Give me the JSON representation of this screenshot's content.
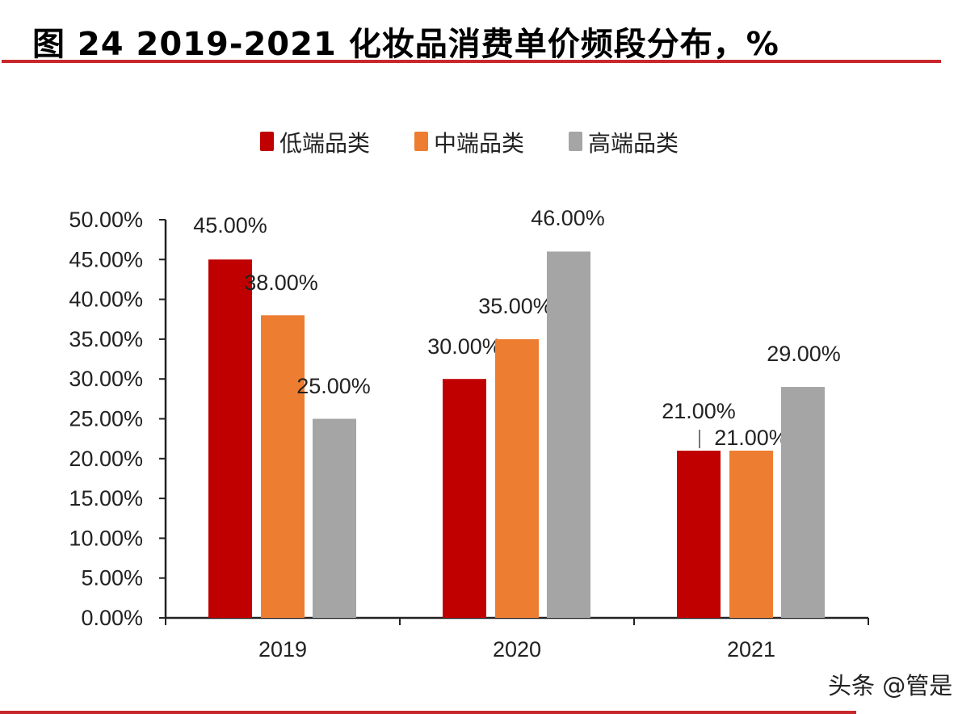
{
  "header": {
    "title": "图 24 2019-2021 化妆品消费单价频段分布，%"
  },
  "watermark": "头条 @管是",
  "chart_data": {
    "type": "bar",
    "title": "图 24 2019-2021 化妆品消费单价频段分布，%",
    "categories": [
      "2019",
      "2020",
      "2021"
    ],
    "series": [
      {
        "name": "低端品类",
        "color": "#c00000",
        "values": [
          45,
          30,
          21
        ],
        "labels": [
          "45.00%",
          "30.00%",
          "21.00%"
        ]
      },
      {
        "name": "中端品类",
        "color": "#ed7d31",
        "values": [
          38,
          35,
          21
        ],
        "labels": [
          "38.00%",
          "35.00%",
          "21.00%"
        ]
      },
      {
        "name": "高端品类",
        "color": "#a5a5a5",
        "values": [
          25,
          46,
          29
        ],
        "labels": [
          "25.00%",
          "46.00%",
          "29.00%"
        ]
      }
    ],
    "ylim": [
      0,
      50
    ],
    "yticks": [
      "0.00%",
      "5.00%",
      "10.00%",
      "15.00%",
      "20.00%",
      "25.00%",
      "30.00%",
      "35.00%",
      "40.00%",
      "45.00%",
      "50.00%"
    ],
    "xlabel": "",
    "ylabel": "",
    "grid": false,
    "legend": "top"
  }
}
